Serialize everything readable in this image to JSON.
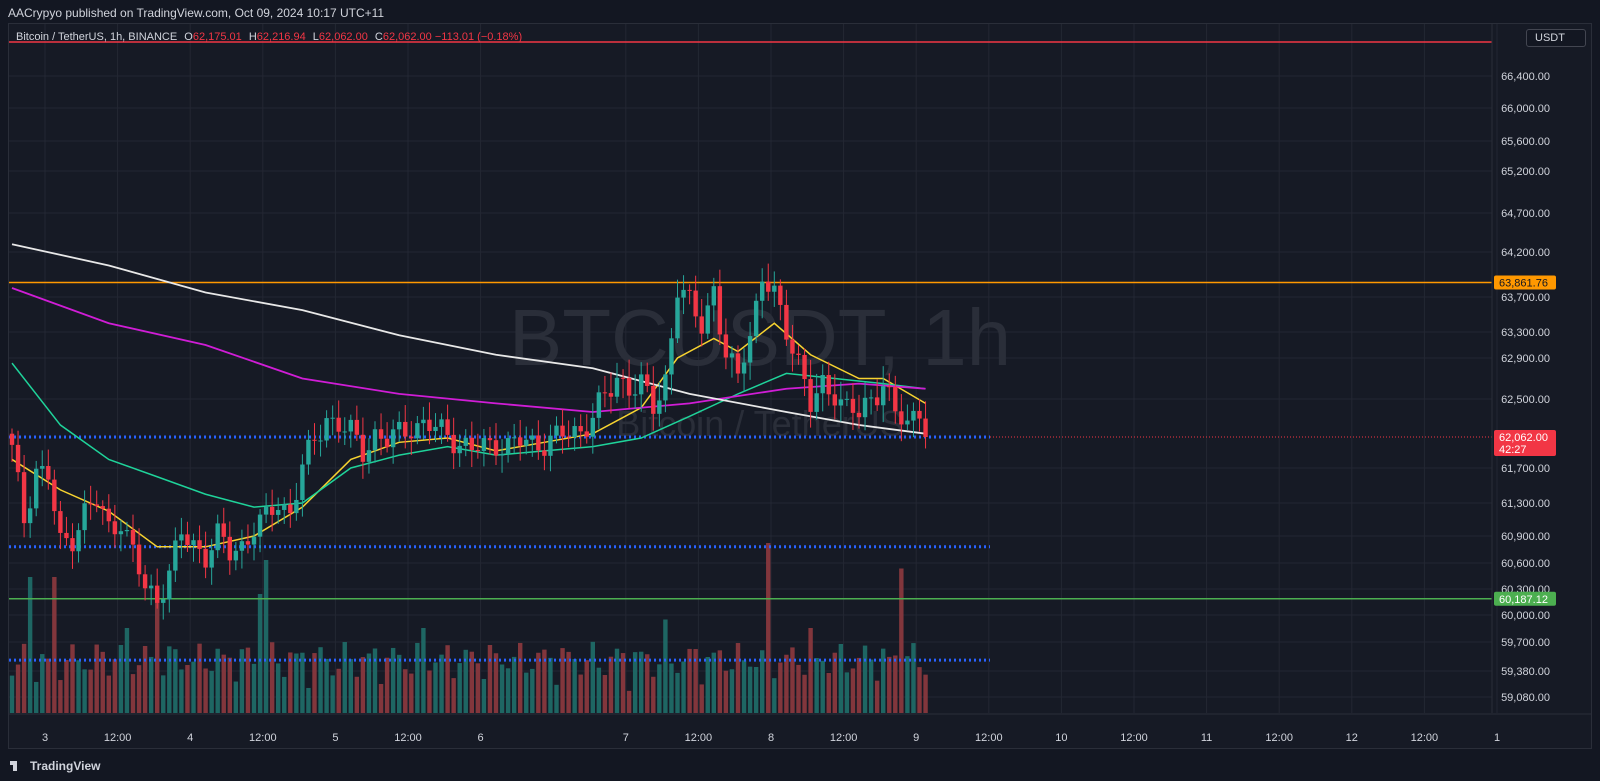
{
  "header": {
    "published_by": "AACrypyo published on TradingView.com, Oct 09, 2024 10:17 UTC+11"
  },
  "legend": {
    "symbol": "Bitcoin / TetherUS, 1h, BINANCE",
    "o_label": "O",
    "o_value": "62,175.01",
    "h_label": "H",
    "h_value": "62,216.94",
    "l_label": "L",
    "l_value": "62,062.00",
    "c_label": "C",
    "c_value": "62,062.00",
    "change": "−113.01 (−0.18%)"
  },
  "currency_button": "USDT",
  "watermark": {
    "symbol": "BTCUSDT, 1h",
    "name": "Bitcoin / TetherUS"
  },
  "footer": {
    "brand": "TradingView",
    "logo_icon": "tradingview-logo-icon"
  },
  "colors": {
    "background": "#161a25",
    "grid": "#232733",
    "up": "#26a69a",
    "down": "#f23645",
    "ema_short": "#f7d330",
    "ema_mid": "#1fd39a",
    "ma_200": "#d01dd6",
    "ma_long": "#e8e8e8",
    "resistance": "#ff9800",
    "support": "#4caf50",
    "dotted_levels": "#2962ff",
    "top_line": "#f23645"
  },
  "chart_data": {
    "type": "candlestick",
    "symbol": "BTCUSDT",
    "timeframe": "1h",
    "exchange": "BINANCE",
    "y_axis": {
      "tick_labels": [
        "66,400.00",
        "66,000.00",
        "65,600.00",
        "65,200.00",
        "64,700.00",
        "64,200.00",
        "63,700.00",
        "63,300.00",
        "62,900.00",
        "62,500.00",
        "61,700.00",
        "61,300.00",
        "60,900.00",
        "60,600.00",
        "60,300.00",
        "60,000.00",
        "59,700.00",
        "59,380.00",
        "59,080.00"
      ]
    },
    "x_axis": {
      "ticks": [
        {
          "label": "3",
          "hour": 0
        },
        {
          "label": "12:00",
          "hour": 12
        },
        {
          "label": "4",
          "hour": 24
        },
        {
          "label": "12:00",
          "hour": 36
        },
        {
          "label": "5",
          "hour": 48
        },
        {
          "label": "12:00",
          "hour": 60
        },
        {
          "label": "6",
          "hour": 72
        },
        {
          "label": "7",
          "hour": 96
        },
        {
          "label": "12:00",
          "hour": 108
        },
        {
          "label": "8",
          "hour": 120
        },
        {
          "label": "12:00",
          "hour": 132
        },
        {
          "label": "9",
          "hour": 144
        },
        {
          "label": "12:00",
          "hour": 156
        },
        {
          "label": "10",
          "hour": 168
        },
        {
          "label": "12:00",
          "hour": 180
        },
        {
          "label": "11",
          "hour": 192
        },
        {
          "label": "12:00",
          "hour": 204
        },
        {
          "label": "12",
          "hour": 216
        },
        {
          "label": "12:00",
          "hour": 228
        },
        {
          "label": "1",
          "hour": 240
        }
      ]
    },
    "price_labels": [
      {
        "name": "resistance",
        "text": "63,861.76",
        "price": 63861.76
      },
      {
        "name": "last-price",
        "text": "62,062.00",
        "price": 62062.0,
        "countdown": "42:27"
      },
      {
        "name": "support",
        "text": "60,187.12",
        "price": 60187.12
      }
    ],
    "levels": {
      "resistance": 63861.76,
      "support": 60187.12,
      "dotted": [
        62062,
        60780,
        59500
      ],
      "top_line": 66700
    },
    "candle_anchors": [
      {
        "h": 0,
        "p": 61900
      },
      {
        "h": 2,
        "p": 61100
      },
      {
        "h": 4,
        "p": 61700
      },
      {
        "h": 6,
        "p": 61600
      },
      {
        "h": 8,
        "p": 60800
      },
      {
        "h": 10,
        "p": 60900
      },
      {
        "h": 12,
        "p": 61200
      },
      {
        "h": 14,
        "p": 61300
      },
      {
        "h": 16,
        "p": 61000
      },
      {
        "h": 18,
        "p": 61100
      },
      {
        "h": 20,
        "p": 60700
      },
      {
        "h": 22,
        "p": 60300
      },
      {
        "h": 24,
        "p": 60200
      },
      {
        "h": 26,
        "p": 60500
      },
      {
        "h": 28,
        "p": 60900
      },
      {
        "h": 30,
        "p": 60800
      },
      {
        "h": 32,
        "p": 60700
      },
      {
        "h": 34,
        "p": 60900
      },
      {
        "h": 36,
        "p": 60700
      },
      {
        "h": 38,
        "p": 60800
      },
      {
        "h": 40,
        "p": 61000
      },
      {
        "h": 42,
        "p": 61100
      },
      {
        "h": 44,
        "p": 61300
      },
      {
        "h": 46,
        "p": 61200
      },
      {
        "h": 48,
        "p": 61700
      },
      {
        "h": 50,
        "p": 62000
      },
      {
        "h": 52,
        "p": 62300
      },
      {
        "h": 54,
        "p": 62200
      },
      {
        "h": 56,
        "p": 62100
      },
      {
        "h": 58,
        "p": 61900
      },
      {
        "h": 60,
        "p": 62100
      },
      {
        "h": 62,
        "p": 62000
      },
      {
        "h": 64,
        "p": 62100
      },
      {
        "h": 66,
        "p": 62200
      },
      {
        "h": 68,
        "p": 62200
      },
      {
        "h": 70,
        "p": 62150
      },
      {
        "h": 72,
        "p": 62100
      },
      {
        "h": 74,
        "p": 62000
      },
      {
        "h": 76,
        "p": 61900
      },
      {
        "h": 78,
        "p": 61950
      },
      {
        "h": 80,
        "p": 62000
      },
      {
        "h": 82,
        "p": 61950
      },
      {
        "h": 84,
        "p": 62000
      },
      {
        "h": 86,
        "p": 62000
      },
      {
        "h": 88,
        "p": 62000
      },
      {
        "h": 90,
        "p": 62050
      },
      {
        "h": 92,
        "p": 62100
      },
      {
        "h": 94,
        "p": 62150
      },
      {
        "h": 96,
        "p": 62300
      },
      {
        "h": 98,
        "p": 62500
      },
      {
        "h": 100,
        "p": 62700
      },
      {
        "h": 102,
        "p": 62650
      },
      {
        "h": 104,
        "p": 62600
      },
      {
        "h": 106,
        "p": 62400
      },
      {
        "h": 108,
        "p": 62700
      },
      {
        "h": 110,
        "p": 63800
      },
      {
        "h": 112,
        "p": 63600
      },
      {
        "h": 114,
        "p": 63400
      },
      {
        "h": 116,
        "p": 63800
      },
      {
        "h": 118,
        "p": 62900
      },
      {
        "h": 120,
        "p": 62700
      },
      {
        "h": 122,
        "p": 63300
      },
      {
        "h": 124,
        "p": 63900
      },
      {
        "h": 126,
        "p": 63700
      },
      {
        "h": 128,
        "p": 63300
      },
      {
        "h": 130,
        "p": 62900
      },
      {
        "h": 132,
        "p": 62400
      },
      {
        "h": 134,
        "p": 62600
      },
      {
        "h": 136,
        "p": 62600
      },
      {
        "h": 138,
        "p": 62400
      },
      {
        "h": 140,
        "p": 62300
      },
      {
        "h": 142,
        "p": 62500
      },
      {
        "h": 144,
        "p": 62700
      },
      {
        "h": 146,
        "p": 62300
      },
      {
        "h": 148,
        "p": 62200
      },
      {
        "h": 150,
        "p": 62400
      },
      {
        "h": 151,
        "p": 62062
      }
    ],
    "series": [
      {
        "indicator": "ema_short",
        "points": [
          {
            "h": 0,
            "p": 61800
          },
          {
            "h": 8,
            "p": 61450
          },
          {
            "h": 16,
            "p": 61200
          },
          {
            "h": 24,
            "p": 60780
          },
          {
            "h": 32,
            "p": 60780
          },
          {
            "h": 40,
            "p": 60900
          },
          {
            "h": 48,
            "p": 61250
          },
          {
            "h": 56,
            "p": 61800
          },
          {
            "h": 64,
            "p": 62000
          },
          {
            "h": 72,
            "p": 62050
          },
          {
            "h": 80,
            "p": 61900
          },
          {
            "h": 88,
            "p": 62000
          },
          {
            "h": 96,
            "p": 62100
          },
          {
            "h": 104,
            "p": 62400
          },
          {
            "h": 110,
            "p": 62900
          },
          {
            "h": 116,
            "p": 63200
          },
          {
            "h": 120,
            "p": 63000
          },
          {
            "h": 126,
            "p": 63400
          },
          {
            "h": 132,
            "p": 62950
          },
          {
            "h": 140,
            "p": 62700
          },
          {
            "h": 144,
            "p": 62700
          },
          {
            "h": 151,
            "p": 62450
          }
        ]
      },
      {
        "indicator": "ema_mid",
        "points": [
          {
            "h": 0,
            "p": 62850
          },
          {
            "h": 8,
            "p": 62200
          },
          {
            "h": 16,
            "p": 61800
          },
          {
            "h": 24,
            "p": 61600
          },
          {
            "h": 32,
            "p": 61400
          },
          {
            "h": 40,
            "p": 61250
          },
          {
            "h": 48,
            "p": 61300
          },
          {
            "h": 56,
            "p": 61700
          },
          {
            "h": 64,
            "p": 61850
          },
          {
            "h": 72,
            "p": 61950
          },
          {
            "h": 80,
            "p": 61850
          },
          {
            "h": 88,
            "p": 61900
          },
          {
            "h": 96,
            "p": 61950
          },
          {
            "h": 104,
            "p": 62050
          },
          {
            "h": 112,
            "p": 62300
          },
          {
            "h": 120,
            "p": 62550
          },
          {
            "h": 128,
            "p": 62750
          },
          {
            "h": 136,
            "p": 62700
          },
          {
            "h": 144,
            "p": 62650
          },
          {
            "h": 151,
            "p": 62600
          }
        ]
      },
      {
        "indicator": "ma_200",
        "points": [
          {
            "h": 0,
            "p": 63800
          },
          {
            "h": 16,
            "p": 63400
          },
          {
            "h": 32,
            "p": 63100
          },
          {
            "h": 48,
            "p": 62700
          },
          {
            "h": 64,
            "p": 62550
          },
          {
            "h": 80,
            "p": 62450
          },
          {
            "h": 96,
            "p": 62350
          },
          {
            "h": 112,
            "p": 62450
          },
          {
            "h": 128,
            "p": 62600
          },
          {
            "h": 140,
            "p": 62650
          },
          {
            "h": 151,
            "p": 62600
          }
        ]
      },
      {
        "indicator": "ma_long",
        "points": [
          {
            "h": 0,
            "p": 64300
          },
          {
            "h": 16,
            "p": 64050
          },
          {
            "h": 32,
            "p": 63750
          },
          {
            "h": 48,
            "p": 63550
          },
          {
            "h": 64,
            "p": 63250
          },
          {
            "h": 80,
            "p": 62950
          },
          {
            "h": 96,
            "p": 62800
          },
          {
            "h": 112,
            "p": 62550
          },
          {
            "h": 128,
            "p": 62350
          },
          {
            "h": 140,
            "p": 62200
          },
          {
            "h": 151,
            "p": 62100
          }
        ]
      }
    ],
    "volume_spikes": [
      {
        "h": 3,
        "v": 0.8
      },
      {
        "h": 7,
        "v": 0.8
      },
      {
        "h": 18,
        "v": 0.4
      },
      {
        "h": 19,
        "v": 0.5
      },
      {
        "h": 24,
        "v": 0.7
      },
      {
        "h": 41,
        "v": 0.7
      },
      {
        "h": 42,
        "v": 0.9
      },
      {
        "h": 68,
        "v": 0.5
      },
      {
        "h": 108,
        "v": 0.55
      },
      {
        "h": 125,
        "v": 1.0
      },
      {
        "h": 132,
        "v": 0.5
      },
      {
        "h": 147,
        "v": 0.85
      }
    ]
  }
}
